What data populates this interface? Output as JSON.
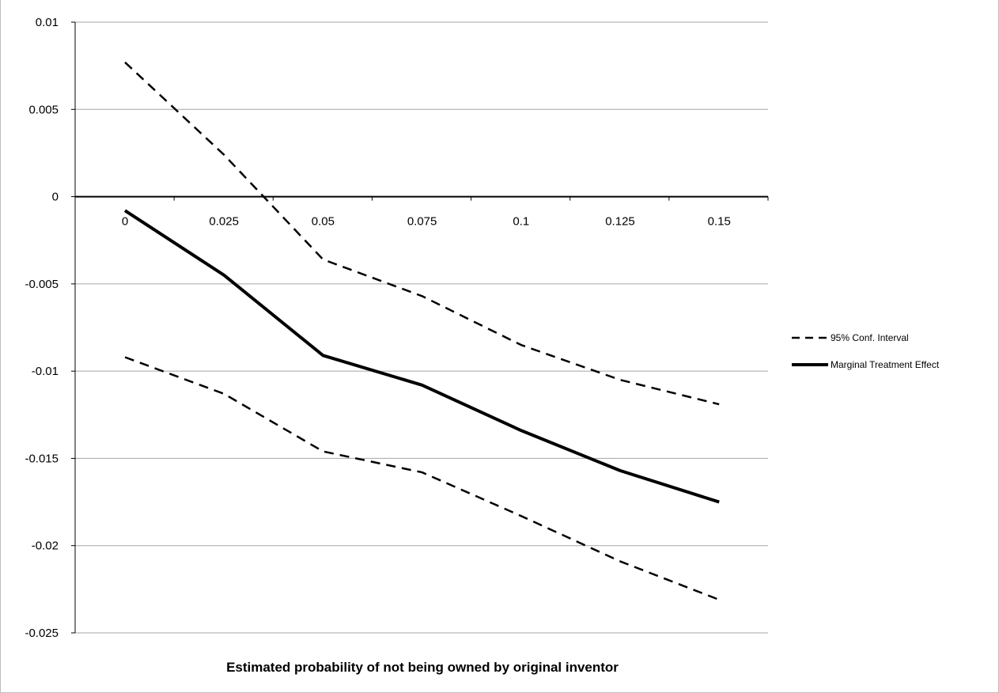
{
  "chart_data": {
    "type": "line",
    "title": "",
    "xlabel": "Estimated probability of not being owned by original inventor",
    "ylabel": "",
    "ylim": [
      -0.025,
      0.01
    ],
    "y_ticks": [
      "0.01",
      "0.005",
      "0",
      "-0.005",
      "-0.01",
      "-0.015",
      "-0.02",
      "-0.025"
    ],
    "y_tick_values": [
      0.01,
      0.005,
      0,
      -0.005,
      -0.01,
      -0.015,
      -0.02,
      -0.025
    ],
    "categories": [
      "0",
      "0.025",
      "0.05",
      "0.075",
      "0.1",
      "0.125",
      "0.15"
    ],
    "grid": true,
    "legend_position": "right",
    "series": [
      {
        "name": "95% Conf. Interval",
        "style": "dashed",
        "values": [
          0.0077,
          0.0024,
          -0.0036,
          -0.0057,
          -0.0085,
          -0.0105,
          -0.0119
        ]
      },
      {
        "name": "",
        "style": "dashed",
        "values": [
          -0.0092,
          -0.0113,
          -0.0146,
          -0.0158,
          -0.0183,
          -0.0209,
          -0.0231
        ]
      },
      {
        "name": "Marginal Treatment Effect",
        "style": "solid",
        "values": [
          -0.0008,
          -0.0045,
          -0.0091,
          -0.0108,
          -0.0134,
          -0.0157,
          -0.0175
        ]
      }
    ],
    "colors": {
      "line": "#000000",
      "grid": "#a6a6a6",
      "axis": "#000000"
    }
  }
}
